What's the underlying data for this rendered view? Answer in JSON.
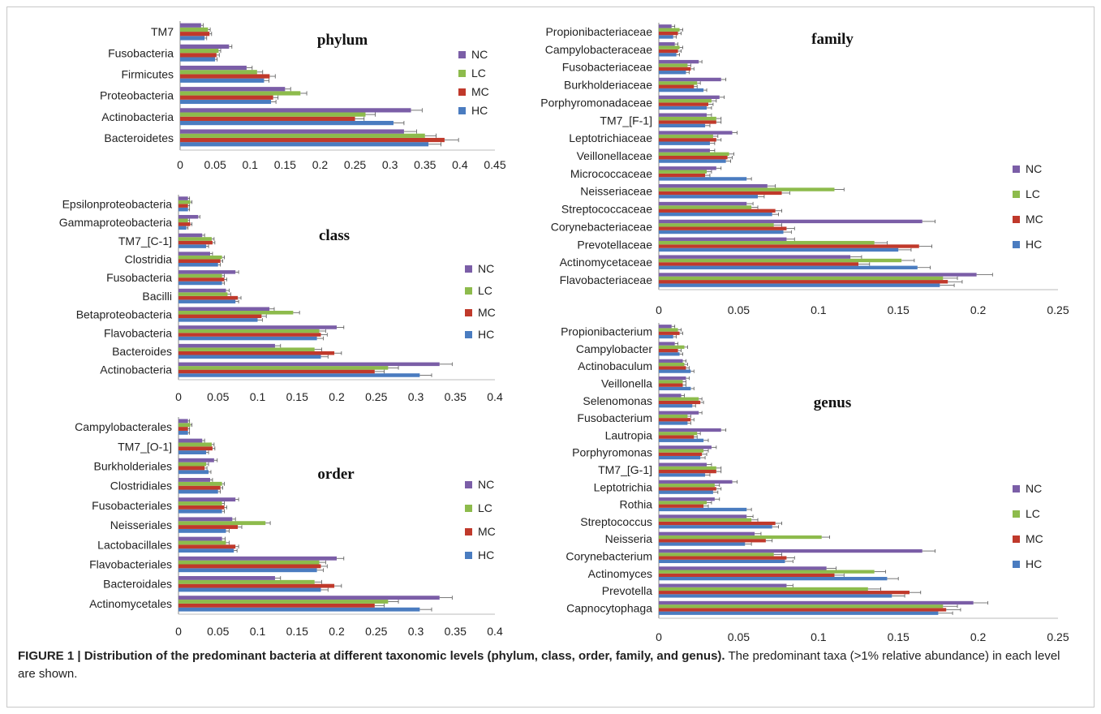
{
  "colors": {
    "NC": "#7b5ea7",
    "LC": "#8dbb4c",
    "MC": "#c0392b",
    "HC": "#4a7cc0"
  },
  "legend": [
    "NC",
    "LC",
    "MC",
    "HC"
  ],
  "caption": {
    "label": "FIGURE 1 | Distribution of the predominant bacteria at different taxonomic levels (phylum, class, order, family, and genus).",
    "text": " The predominant taxa (>1% relative abundance) in each level are shown."
  },
  "chart_data": [
    {
      "type": "bar",
      "orientation": "horizontal",
      "title": "phylum",
      "categories": [
        "Bacteroidetes",
        "Actinobacteria",
        "Proteobacteria",
        "Firmicutes",
        "Fusobacteria",
        "TM7"
      ],
      "series": [
        {
          "name": "NC",
          "values": [
            0.32,
            0.33,
            0.15,
            0.095,
            0.07,
            0.03
          ]
        },
        {
          "name": "LC",
          "values": [
            0.35,
            0.265,
            0.172,
            0.11,
            0.055,
            0.04
          ]
        },
        {
          "name": "MC",
          "values": [
            0.378,
            0.25,
            0.133,
            0.128,
            0.052,
            0.042
          ]
        },
        {
          "name": "HC",
          "values": [
            0.355,
            0.305,
            0.13,
            0.12,
            0.05,
            0.035
          ]
        }
      ],
      "errors": [
        [
          0.018,
          0.016,
          0.008,
          0.008,
          0.004,
          0.003
        ],
        [
          0.016,
          0.014,
          0.009,
          0.008,
          0.003,
          0.003
        ],
        [
          0.02,
          0.013,
          0.007,
          0.008,
          0.004,
          0.003
        ],
        [
          0.018,
          0.015,
          0.007,
          0.007,
          0.003,
          0.003
        ]
      ],
      "xlim": [
        0,
        0.45
      ],
      "xticks": [
        "0",
        "0.05",
        "0.1",
        "0.15",
        "0.2",
        "0.25",
        "0.3",
        "0.35",
        "0.4",
        "0.45"
      ]
    },
    {
      "type": "bar",
      "orientation": "horizontal",
      "title": "class",
      "categories": [
        "Actinobacteria",
        "Bacteroides",
        "Flavobacteria",
        "Betaproteobacteria",
        "Bacilli",
        "Fusobacteria",
        "Clostridia",
        "TM7_[C-1]",
        "Gammaproteobacteria",
        "Epsilonproteobacteria"
      ],
      "series": [
        {
          "name": "NC",
          "values": [
            0.33,
            0.122,
            0.2,
            0.115,
            0.06,
            0.072,
            0.04,
            0.03,
            0.025,
            0.012
          ]
        },
        {
          "name": "LC",
          "values": [
            0.265,
            0.172,
            0.178,
            0.145,
            0.062,
            0.055,
            0.055,
            0.042,
            0.012,
            0.015
          ]
        },
        {
          "name": "MC",
          "values": [
            0.248,
            0.197,
            0.18,
            0.105,
            0.075,
            0.058,
            0.053,
            0.043,
            0.015,
            0.012
          ]
        },
        {
          "name": "HC",
          "values": [
            0.305,
            0.18,
            0.175,
            0.1,
            0.072,
            0.055,
            0.05,
            0.035,
            0.01,
            0.012
          ]
        }
      ],
      "errors": [
        [
          0.016,
          0.007,
          0.009,
          0.006,
          0.004,
          0.004,
          0.003,
          0.003,
          0.002,
          0.002
        ],
        [
          0.013,
          0.009,
          0.008,
          0.008,
          0.004,
          0.003,
          0.003,
          0.003,
          0.002,
          0.002
        ],
        [
          0.012,
          0.009,
          0.008,
          0.006,
          0.004,
          0.003,
          0.003,
          0.003,
          0.002,
          0.002
        ],
        [
          0.015,
          0.009,
          0.008,
          0.006,
          0.004,
          0.003,
          0.003,
          0.003,
          0.002,
          0.002
        ]
      ],
      "xlim": [
        0,
        0.4
      ],
      "xticks": [
        "0",
        "0.05",
        "0.1",
        "0.15",
        "0.2",
        "0.25",
        "0.3",
        "0.35",
        "0.4"
      ]
    },
    {
      "type": "bar",
      "orientation": "horizontal",
      "title": "order",
      "categories": [
        "Actinomycetales",
        "Bacteroidales",
        "Flavobacteriales",
        "Lactobacillales",
        "Neisseriales",
        "Fusobacteriales",
        "Clostridiales",
        "Burkholderiales",
        "TM7_[O-1]",
        "Campylobacterales"
      ],
      "series": [
        {
          "name": "NC",
          "values": [
            0.33,
            0.122,
            0.2,
            0.055,
            0.068,
            0.072,
            0.04,
            0.045,
            0.03,
            0.012
          ]
        },
        {
          "name": "LC",
          "values": [
            0.265,
            0.172,
            0.178,
            0.06,
            0.11,
            0.055,
            0.055,
            0.035,
            0.042,
            0.015
          ]
        },
        {
          "name": "MC",
          "values": [
            0.248,
            0.197,
            0.18,
            0.072,
            0.075,
            0.058,
            0.053,
            0.033,
            0.043,
            0.012
          ]
        },
        {
          "name": "HC",
          "values": [
            0.305,
            0.18,
            0.175,
            0.07,
            0.06,
            0.055,
            0.05,
            0.038,
            0.035,
            0.012
          ]
        }
      ],
      "errors": [
        [
          0.016,
          0.007,
          0.009,
          0.004,
          0.004,
          0.004,
          0.003,
          0.004,
          0.003,
          0.002
        ],
        [
          0.013,
          0.009,
          0.008,
          0.004,
          0.006,
          0.003,
          0.003,
          0.003,
          0.003,
          0.002
        ],
        [
          0.012,
          0.009,
          0.008,
          0.004,
          0.005,
          0.003,
          0.003,
          0.003,
          0.003,
          0.002
        ],
        [
          0.015,
          0.009,
          0.008,
          0.004,
          0.004,
          0.003,
          0.003,
          0.003,
          0.003,
          0.002
        ]
      ],
      "xlim": [
        0,
        0.4
      ],
      "xticks": [
        "0",
        "0.05",
        "0.1",
        "0.15",
        "0.2",
        "0.25",
        "0.3",
        "0.35",
        "0.4"
      ]
    },
    {
      "type": "bar",
      "orientation": "horizontal",
      "title": "family",
      "categories": [
        "Flavobacteriaceae",
        "Actinomycetaceae",
        "Prevotellaceae",
        "Corynebacteriaceae",
        "Streptococcaceae",
        "Neisseriaceae",
        "Micrococcaceae",
        "Veillonellaceae",
        "Leptotrichiaceae",
        "TM7_[F-1]",
        "Porphyromonadaceae",
        "Burkholderiaceae",
        "Fusobacteriaceae",
        "Campylobacteraceae",
        "Propionibacteriaceae"
      ],
      "series": [
        {
          "name": "NC",
          "values": [
            0.199,
            0.12,
            0.08,
            0.165,
            0.055,
            0.068,
            0.036,
            0.032,
            0.046,
            0.03,
            0.038,
            0.039,
            0.025,
            0.01,
            0.008
          ]
        },
        {
          "name": "LC",
          "values": [
            0.178,
            0.152,
            0.135,
            0.072,
            0.058,
            0.11,
            0.03,
            0.044,
            0.034,
            0.036,
            0.033,
            0.024,
            0.018,
            0.013,
            0.013
          ]
        },
        {
          "name": "MC",
          "values": [
            0.181,
            0.125,
            0.163,
            0.08,
            0.073,
            0.077,
            0.029,
            0.043,
            0.036,
            0.036,
            0.031,
            0.022,
            0.02,
            0.012,
            0.012
          ]
        },
        {
          "name": "HC",
          "values": [
            0.176,
            0.162,
            0.15,
            0.078,
            0.071,
            0.062,
            0.055,
            0.042,
            0.032,
            0.029,
            0.03,
            0.028,
            0.017,
            0.011,
            0.009
          ]
        }
      ],
      "errors": [
        [
          0.01,
          0.007,
          0.005,
          0.008,
          0.004,
          0.005,
          0.003,
          0.003,
          0.003,
          0.003,
          0.003,
          0.003,
          0.002,
          0.002,
          0.002
        ],
        [
          0.009,
          0.008,
          0.008,
          0.005,
          0.004,
          0.006,
          0.003,
          0.003,
          0.003,
          0.003,
          0.003,
          0.002,
          0.002,
          0.002,
          0.002
        ],
        [
          0.009,
          0.007,
          0.008,
          0.005,
          0.004,
          0.005,
          0.003,
          0.003,
          0.003,
          0.003,
          0.003,
          0.002,
          0.002,
          0.002,
          0.002
        ],
        [
          0.009,
          0.008,
          0.008,
          0.005,
          0.004,
          0.004,
          0.003,
          0.003,
          0.003,
          0.003,
          0.003,
          0.002,
          0.002,
          0.002,
          0.002
        ]
      ],
      "xlim": [
        0,
        0.25
      ],
      "xticks": [
        "0",
        "0.05",
        "0.1",
        "0.15",
        "0.2",
        "0.25"
      ]
    },
    {
      "type": "bar",
      "orientation": "horizontal",
      "title": "genus",
      "categories": [
        "Capnocytophaga",
        "Prevotella",
        "Actinomyces",
        "Corynebacterium",
        "Neisseria",
        "Streptococcus",
        "Rothia",
        "Leptotrichia",
        "TM7_[G-1]",
        "Porphyromonas",
        "Lautropia",
        "Fusobacterium",
        "Selenomonas",
        "Veillonella",
        "Actinobaculum",
        "Campylobacter",
        "Propionibacterium"
      ],
      "series": [
        {
          "name": "NC",
          "values": [
            0.197,
            0.08,
            0.105,
            0.165,
            0.06,
            0.055,
            0.035,
            0.046,
            0.03,
            0.033,
            0.039,
            0.025,
            0.014,
            0.017,
            0.015,
            0.01,
            0.008
          ]
        },
        {
          "name": "LC",
          "values": [
            0.178,
            0.131,
            0.135,
            0.072,
            0.102,
            0.058,
            0.03,
            0.035,
            0.036,
            0.028,
            0.024,
            0.018,
            0.025,
            0.015,
            0.016,
            0.016,
            0.012
          ]
        },
        {
          "name": "MC",
          "values": [
            0.18,
            0.157,
            0.11,
            0.08,
            0.067,
            0.073,
            0.028,
            0.036,
            0.036,
            0.027,
            0.022,
            0.02,
            0.026,
            0.015,
            0.017,
            0.012,
            0.013
          ]
        },
        {
          "name": "HC",
          "values": [
            0.175,
            0.146,
            0.143,
            0.079,
            0.054,
            0.071,
            0.055,
            0.034,
            0.029,
            0.026,
            0.028,
            0.018,
            0.021,
            0.02,
            0.02,
            0.013,
            0.009
          ]
        }
      ],
      "errors": [
        [
          0.009,
          0.004,
          0.006,
          0.008,
          0.004,
          0.004,
          0.003,
          0.003,
          0.003,
          0.003,
          0.003,
          0.002,
          0.002,
          0.002,
          0.002,
          0.002,
          0.002
        ],
        [
          0.009,
          0.008,
          0.007,
          0.005,
          0.005,
          0.004,
          0.003,
          0.003,
          0.003,
          0.003,
          0.002,
          0.002,
          0.002,
          0.002,
          0.002,
          0.002,
          0.002
        ],
        [
          0.009,
          0.007,
          0.006,
          0.005,
          0.004,
          0.004,
          0.003,
          0.003,
          0.003,
          0.003,
          0.002,
          0.002,
          0.002,
          0.002,
          0.002,
          0.002,
          0.002
        ],
        [
          0.009,
          0.008,
          0.007,
          0.005,
          0.004,
          0.004,
          0.003,
          0.003,
          0.003,
          0.003,
          0.003,
          0.002,
          0.002,
          0.002,
          0.002,
          0.002,
          0.002
        ]
      ],
      "xlim": [
        0,
        0.25
      ],
      "xticks": [
        "0",
        "0.05",
        "0.1",
        "0.15",
        "0.2",
        "0.25"
      ]
    }
  ]
}
